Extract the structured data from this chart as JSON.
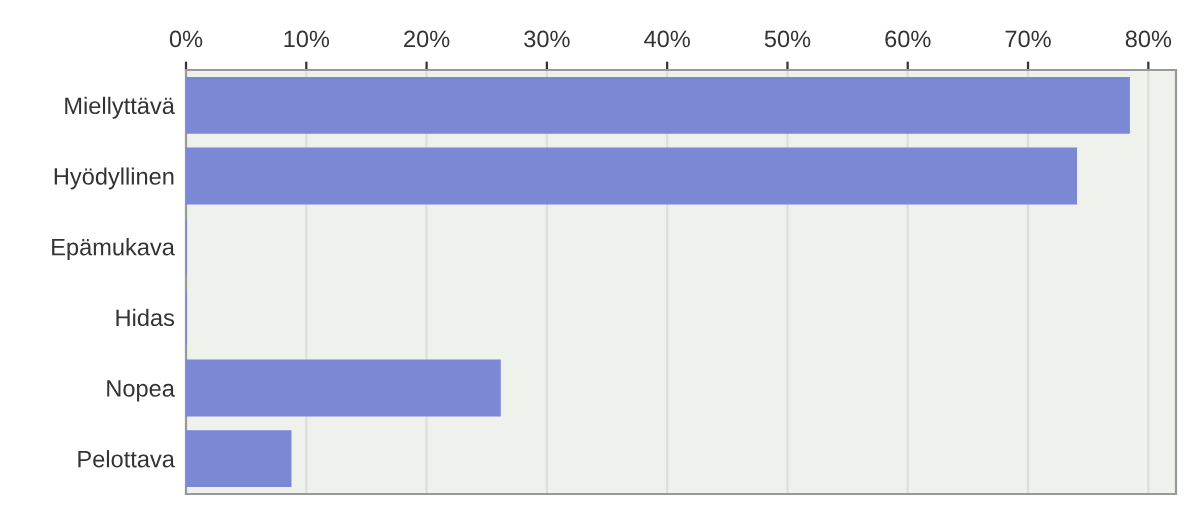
{
  "chart_data": {
    "type": "bar",
    "orientation": "horizontal",
    "categories": [
      "Miellyttävä",
      "Hyödyllinen",
      "Epämukava",
      "Hidas",
      "Nopea",
      "Pelottava"
    ],
    "values": [
      78.4,
      74.0,
      0,
      0,
      26.1,
      8.7
    ],
    "color": "#7b88d4",
    "xlim": [
      0,
      82.3
    ],
    "xticks": [
      {
        "value": 0,
        "label": "0%"
      },
      {
        "value": 10,
        "label": "10%"
      },
      {
        "value": 20,
        "label": "20%"
      },
      {
        "value": 30,
        "label": "30%"
      },
      {
        "value": 40,
        "label": "40%"
      },
      {
        "value": 50,
        "label": "50%"
      },
      {
        "value": 60,
        "label": "60%"
      },
      {
        "value": 70,
        "label": "70%"
      },
      {
        "value": 80,
        "label": "80%"
      }
    ],
    "grid": "x",
    "legend": false
  }
}
